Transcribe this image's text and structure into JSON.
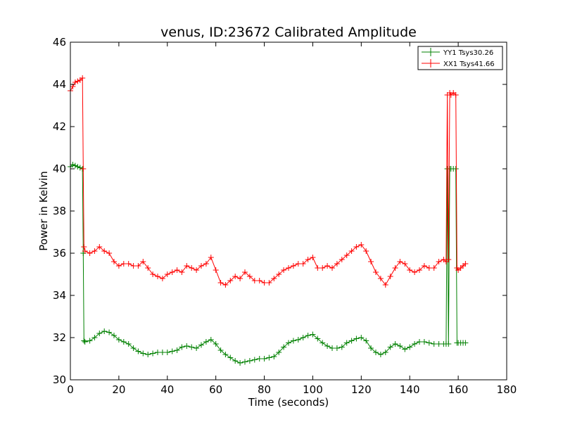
{
  "chart_data": {
    "type": "line",
    "title": "venus, ID:23672 Calibrated Amplitude",
    "xlabel": "Time (seconds)",
    "ylabel": "Power in Kelvin",
    "xlim": [
      0,
      180
    ],
    "ylim": [
      30,
      46
    ],
    "xticks": [
      "0",
      "20",
      "40",
      "60",
      "80",
      "100",
      "120",
      "140",
      "160",
      "180"
    ],
    "yticks": [
      "30",
      "32",
      "34",
      "36",
      "38",
      "40",
      "42",
      "44",
      "46"
    ],
    "grid": false,
    "legend_position": "top-right",
    "marker": "+",
    "series": [
      {
        "name": "YY1 Tsys30.26",
        "color": "#008000",
        "x": [
          0,
          1,
          2,
          3,
          4,
          5,
          5.3,
          5.6,
          6,
          8,
          10,
          12,
          14,
          16,
          18,
          20,
          22,
          24,
          26,
          28,
          30,
          32,
          34,
          36,
          38,
          40,
          42,
          44,
          46,
          48,
          50,
          52,
          54,
          56,
          58,
          60,
          62,
          64,
          66,
          68,
          70,
          72,
          74,
          76,
          78,
          80,
          82,
          84,
          86,
          88,
          90,
          92,
          94,
          96,
          98,
          100,
          102,
          104,
          106,
          108,
          110,
          112,
          114,
          116,
          118,
          120,
          122,
          124,
          126,
          128,
          130,
          132,
          134,
          136,
          138,
          140,
          142,
          144,
          146,
          148,
          150,
          152,
          154,
          155,
          155.5,
          156,
          156.5,
          157,
          158,
          159,
          159.5,
          160,
          161,
          162,
          163
        ],
        "y": [
          40.1,
          40.2,
          40.15,
          40.1,
          40.05,
          40.0,
          36.0,
          31.85,
          31.8,
          31.85,
          32.0,
          32.2,
          32.3,
          32.25,
          32.1,
          31.9,
          31.8,
          31.7,
          31.5,
          31.35,
          31.25,
          31.2,
          31.25,
          31.3,
          31.3,
          31.3,
          31.35,
          31.4,
          31.55,
          31.6,
          31.55,
          31.5,
          31.65,
          31.8,
          31.9,
          31.7,
          31.4,
          31.2,
          31.05,
          30.9,
          30.8,
          30.85,
          30.9,
          30.95,
          31.0,
          31.0,
          31.05,
          31.1,
          31.3,
          31.55,
          31.75,
          31.85,
          31.9,
          32.0,
          32.1,
          32.15,
          31.95,
          31.75,
          31.6,
          31.5,
          31.5,
          31.55,
          31.75,
          31.85,
          31.95,
          32.0,
          31.85,
          31.5,
          31.3,
          31.2,
          31.3,
          31.55,
          31.7,
          31.6,
          31.45,
          31.55,
          31.7,
          31.8,
          31.8,
          31.75,
          31.7,
          31.7,
          31.7,
          31.7,
          40.0,
          31.7,
          40.0,
          40.0,
          40.0,
          40.0,
          31.75,
          31.75,
          31.75,
          31.75,
          31.75
        ]
      },
      {
        "name": "XX1 Tsys41.66",
        "color": "#ff0000",
        "x": [
          0,
          1,
          2,
          3,
          4,
          5,
          5.3,
          5.6,
          6,
          8,
          10,
          12,
          14,
          16,
          18,
          20,
          22,
          24,
          26,
          28,
          30,
          32,
          34,
          36,
          38,
          40,
          42,
          44,
          46,
          48,
          50,
          52,
          54,
          56,
          58,
          60,
          62,
          64,
          66,
          68,
          70,
          72,
          74,
          76,
          78,
          80,
          82,
          84,
          86,
          88,
          90,
          92,
          94,
          96,
          98,
          100,
          102,
          104,
          106,
          108,
          110,
          112,
          114,
          116,
          118,
          120,
          122,
          124,
          126,
          128,
          130,
          132,
          134,
          136,
          138,
          140,
          142,
          144,
          146,
          148,
          150,
          152,
          154,
          155,
          155.5,
          156,
          156.5,
          157,
          158,
          159,
          159.5,
          160,
          161,
          162,
          163
        ],
        "y": [
          43.7,
          43.9,
          44.1,
          44.15,
          44.2,
          44.3,
          40.0,
          36.3,
          36.1,
          36.0,
          36.1,
          36.3,
          36.1,
          36.0,
          35.6,
          35.4,
          35.5,
          35.5,
          35.4,
          35.4,
          35.6,
          35.3,
          35.0,
          34.9,
          34.8,
          35.0,
          35.1,
          35.2,
          35.1,
          35.4,
          35.3,
          35.2,
          35.4,
          35.5,
          35.8,
          35.2,
          34.6,
          34.5,
          34.7,
          34.9,
          34.8,
          35.1,
          34.9,
          34.7,
          34.7,
          34.6,
          34.6,
          34.8,
          35.0,
          35.2,
          35.3,
          35.4,
          35.5,
          35.5,
          35.7,
          35.8,
          35.3,
          35.3,
          35.4,
          35.3,
          35.5,
          35.7,
          35.9,
          36.1,
          36.3,
          36.4,
          36.1,
          35.6,
          35.1,
          34.8,
          34.5,
          34.9,
          35.3,
          35.6,
          35.5,
          35.2,
          35.1,
          35.2,
          35.4,
          35.3,
          35.3,
          35.6,
          35.7,
          35.6,
          43.5,
          35.7,
          43.6,
          43.5,
          43.6,
          43.5,
          35.3,
          35.2,
          35.3,
          35.4,
          35.5
        ]
      }
    ]
  }
}
